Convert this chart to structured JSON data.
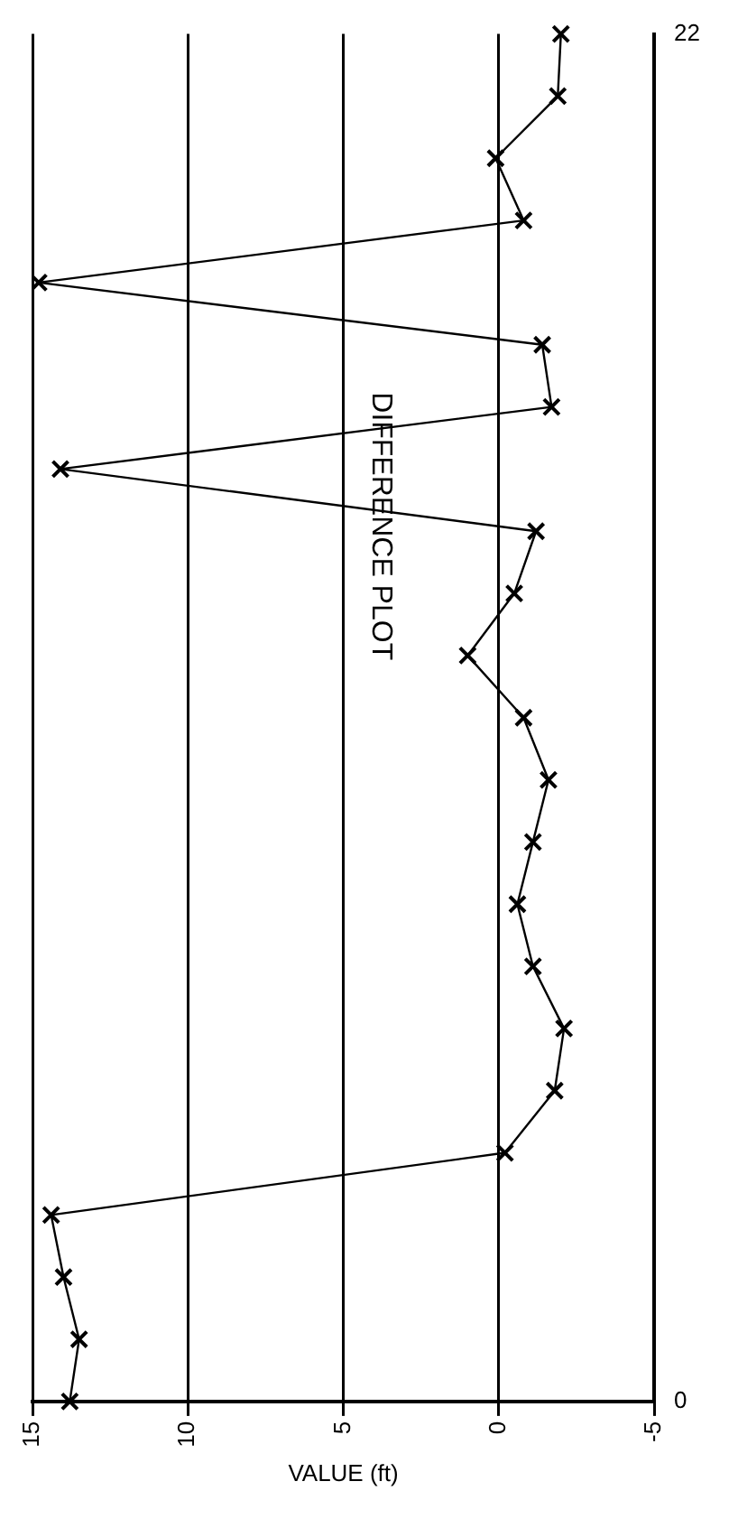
{
  "chart_data": {
    "type": "line",
    "title": "DIFFERENCE PLOT",
    "xlabel": "VALUE (ft)",
    "orientation": "horizontal",
    "categories": [
      "22",
      null,
      null,
      null,
      null,
      null,
      null,
      null,
      null,
      null,
      null,
      null,
      null,
      null,
      null,
      null,
      null,
      null,
      null,
      null,
      null,
      null,
      "0"
    ],
    "values": [
      -2.0,
      -1.9,
      0.1,
      -0.8,
      14.8,
      -1.4,
      -1.7,
      14.1,
      -1.2,
      -0.5,
      1.0,
      -0.8,
      -1.6,
      -1.1,
      -0.6,
      -1.1,
      -2.1,
      -1.8,
      -0.2,
      14.4,
      14.0,
      13.5,
      13.8
    ],
    "color": "#000000",
    "marker": "cross",
    "line_style": "solid",
    "xlim": [
      15,
      -5
    ],
    "xticks": [
      15,
      10,
      5,
      0,
      -5
    ],
    "grid": "x",
    "legend": false
  }
}
